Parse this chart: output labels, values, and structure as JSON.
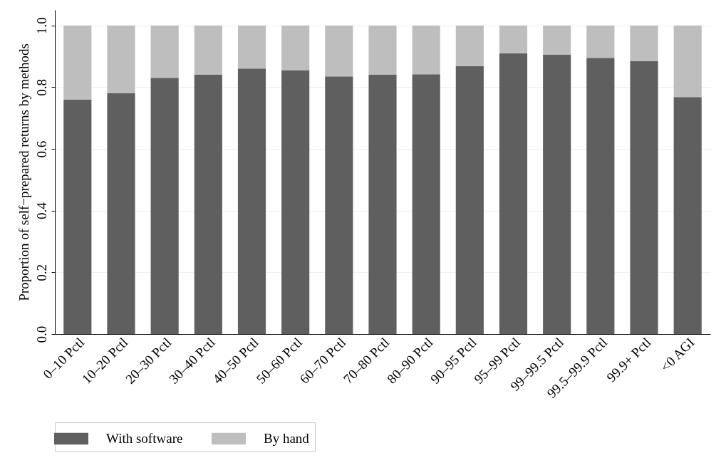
{
  "chart_data": {
    "type": "bar",
    "stacked": true,
    "ylabel": "Proportion of self−prepared returns by methods",
    "categories": [
      "0–10 Pctl",
      "10–20 Pctl",
      "20–30 Pctl",
      "30–40 Pctl",
      "40–50 Pctl",
      "50–60 Pctl",
      "60–70 Pctl",
      "70–80 Pctl",
      "80–90 Pctl",
      "90–95 Pctl",
      "95–99 Pctl",
      "99–99.5 Pctl",
      "99.5–99.9 Pctl",
      "99.9+ Pctl",
      "<0 AGI"
    ],
    "series": [
      {
        "name": "With software",
        "color": "#5f5f5f",
        "values": [
          0.76,
          0.78,
          0.83,
          0.84,
          0.86,
          0.855,
          0.835,
          0.84,
          0.842,
          0.868,
          0.91,
          0.906,
          0.895,
          0.884,
          0.768
        ]
      },
      {
        "name": "By hand",
        "color": "#bebebe",
        "values": [
          0.24,
          0.22,
          0.17,
          0.16,
          0.14,
          0.145,
          0.165,
          0.16,
          0.158,
          0.132,
          0.09,
          0.094,
          0.105,
          0.116,
          0.232
        ]
      }
    ],
    "ylim": [
      0,
      1.05
    ],
    "yticks": [
      {
        "value": 0,
        "label": "0.0"
      },
      0.2,
      0.4,
      0.6,
      0.8,
      {
        "value": 1,
        "label": "1.0"
      }
    ],
    "grid": "y",
    "legend": "bottom"
  }
}
